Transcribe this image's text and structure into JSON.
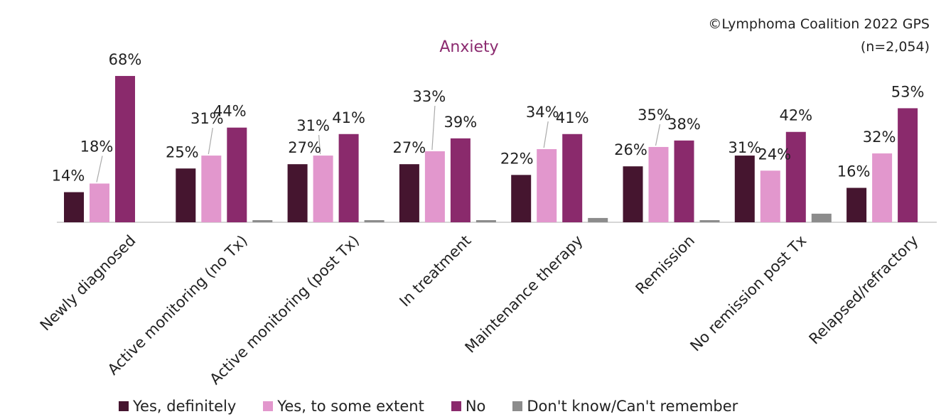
{
  "copyright": "©Lymphoma Coalition 2022 GPS",
  "sample": "(n=2,054)",
  "chart_data": {
    "type": "bar",
    "title": "Anxiety",
    "categories": [
      "Newly diagnosed",
      "Active monitoring (no Tx)",
      "Active monitoring (post Tx)",
      "In treatment",
      "Maintenance therapy",
      "Remission",
      "No remission post Tx",
      "Relapsed/refractory"
    ],
    "series": [
      {
        "name": "Yes, definitely",
        "color": "#45152F",
        "values": [
          14,
          25,
          27,
          27,
          22,
          26,
          31,
          16
        ],
        "labels": [
          "14%",
          "25%",
          "27%",
          "27%",
          "22%",
          "26%",
          "31%",
          "16%"
        ]
      },
      {
        "name": "Yes, to some extent",
        "color": "#E297CD",
        "values": [
          18,
          31,
          31,
          33,
          34,
          35,
          24,
          32
        ],
        "labels": [
          "18%",
          "31%",
          "31%",
          "33%",
          "34%",
          "35%",
          "24%",
          "32%"
        ]
      },
      {
        "name": "No",
        "color": "#8A2A6C",
        "values": [
          68,
          44,
          41,
          39,
          41,
          38,
          42,
          53
        ],
        "labels": [
          "68%",
          "44%",
          "41%",
          "39%",
          "41%",
          "38%",
          "42%",
          "53%"
        ]
      },
      {
        "name": "Don't know/Can't remember",
        "color": "#8C8C8C",
        "values": [
          0,
          1,
          1,
          1,
          2,
          1,
          4,
          0
        ],
        "labels": [
          "",
          "",
          "",
          "",
          "",
          "",
          "",
          ""
        ]
      }
    ],
    "grid": false,
    "legend_position": "bottom"
  }
}
